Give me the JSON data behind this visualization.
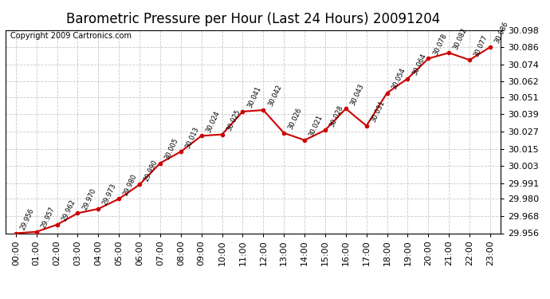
{
  "title": "Barometric Pressure per Hour (Last 24 Hours) 20091204",
  "copyright": "Copyright 2009 Cartronics.com",
  "hours": [
    "00:00",
    "01:00",
    "02:00",
    "03:00",
    "04:00",
    "05:00",
    "06:00",
    "07:00",
    "08:00",
    "09:00",
    "10:00",
    "11:00",
    "12:00",
    "13:00",
    "14:00",
    "15:00",
    "16:00",
    "17:00",
    "18:00",
    "19:00",
    "20:00",
    "21:00",
    "22:00",
    "23:00"
  ],
  "values": [
    29.956,
    29.957,
    29.962,
    29.97,
    29.973,
    29.98,
    29.99,
    30.005,
    30.013,
    30.024,
    30.025,
    30.041,
    30.042,
    30.026,
    30.021,
    30.028,
    30.043,
    30.031,
    30.054,
    30.064,
    30.078,
    30.082,
    30.077,
    30.086
  ],
  "line_color": "#cc0000",
  "marker_color": "#cc0000",
  "bg_color": "#ffffff",
  "grid_color": "#c8c8c8",
  "title_fontsize": 12,
  "copyright_fontsize": 7,
  "tick_fontsize": 8,
  "annot_fontsize": 6,
  "ylim_min": 29.956,
  "ylim_max": 30.098,
  "yticks": [
    29.956,
    29.968,
    29.98,
    29.991,
    30.003,
    30.015,
    30.027,
    30.039,
    30.051,
    30.062,
    30.074,
    30.086,
    30.098
  ]
}
